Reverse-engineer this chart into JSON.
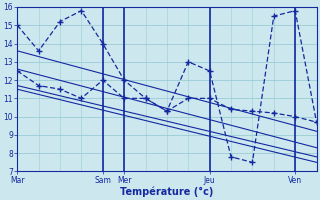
{
  "bg_color": "#cce8ee",
  "grid_color": "#99ccd6",
  "line_color": "#1428a0",
  "xlabel": "Température (°c)",
  "ylim": [
    7,
    16
  ],
  "xlim": [
    0,
    28
  ],
  "yticks": [
    7,
    8,
    9,
    10,
    11,
    12,
    13,
    14,
    15,
    16
  ],
  "xtick_major_pos": [
    0,
    8,
    10,
    18,
    26
  ],
  "xtick_major_labels": [
    "Mar",
    "Sam",
    "Mer",
    "Jeu",
    "Ven"
  ],
  "forecast1_x": [
    0,
    2,
    4,
    6,
    8,
    10,
    12,
    14,
    16,
    18,
    20,
    22,
    24,
    26,
    28
  ],
  "forecast1_y": [
    15.0,
    13.6,
    15.2,
    15.8,
    14.0,
    12.0,
    11.0,
    10.3,
    13.0,
    12.5,
    7.8,
    7.5,
    15.5,
    15.8,
    9.7
  ],
  "forecast2_x": [
    0,
    2,
    4,
    6,
    8,
    10,
    12,
    14,
    16,
    18,
    20,
    22,
    24,
    26,
    28
  ],
  "forecast2_y": [
    12.5,
    11.7,
    11.5,
    11.0,
    12.0,
    11.0,
    11.0,
    10.3,
    11.0,
    11.0,
    10.4,
    10.3,
    10.2,
    10.0,
    9.7
  ],
  "trend_lines": [
    {
      "x0": 0,
      "y0": 13.6,
      "x1": 28,
      "y1": 9.2
    },
    {
      "x0": 0,
      "y0": 12.6,
      "x1": 28,
      "y1": 8.3
    },
    {
      "x0": 0,
      "y0": 11.7,
      "x1": 28,
      "y1": 7.8
    },
    {
      "x0": 0,
      "y0": 11.5,
      "x1": 28,
      "y1": 7.5
    }
  ]
}
